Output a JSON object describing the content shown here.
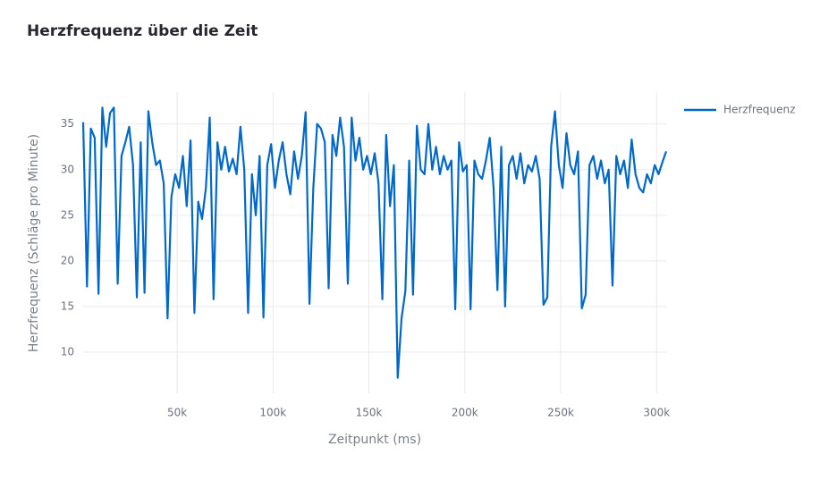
{
  "chart_data": {
    "type": "line",
    "title": "Herzfrequenz über die Zeit",
    "x_label": "Zeitpunkt (ms)",
    "y_label": "Herzfrequenz (Schläge pro Minute)",
    "xlim": [
      1000,
      305000
    ],
    "ylim": [
      5.5,
      38.5
    ],
    "xticks": [
      {
        "value": 50000,
        "label": "50k"
      },
      {
        "value": 100000,
        "label": "100k"
      },
      {
        "value": 150000,
        "label": "150k"
      },
      {
        "value": 200000,
        "label": "200k"
      },
      {
        "value": 250000,
        "label": "250k"
      },
      {
        "value": 300000,
        "label": "300k"
      }
    ],
    "yticks": [
      10,
      15,
      20,
      25,
      30,
      35
    ],
    "grid": true,
    "legend": "right",
    "x": [
      1000,
      3000,
      5000,
      7000,
      9000,
      11000,
      13000,
      15000,
      17000,
      19000,
      21000,
      23000,
      25000,
      27000,
      29000,
      31000,
      33000,
      35000,
      37000,
      39000,
      41000,
      43000,
      45000,
      47000,
      49000,
      51000,
      53000,
      55000,
      57000,
      59000,
      61000,
      63000,
      65000,
      67000,
      69000,
      71000,
      73000,
      75000,
      77000,
      79000,
      81000,
      83000,
      85000,
      87000,
      89000,
      91000,
      93000,
      95000,
      97000,
      99000,
      101000,
      103000,
      105000,
      107000,
      109000,
      111000,
      113000,
      115000,
      117000,
      119000,
      121000,
      123000,
      125000,
      127000,
      129000,
      131000,
      133000,
      135000,
      137000,
      139000,
      141000,
      143000,
      145000,
      147000,
      149000,
      151000,
      153000,
      155000,
      157000,
      159000,
      161000,
      163000,
      165000,
      167000,
      169000,
      171000,
      173000,
      175000,
      177000,
      179000,
      181000,
      183000,
      185000,
      187000,
      189000,
      191000,
      193000,
      195000,
      197000,
      199000,
      201000,
      203000,
      205000,
      207000,
      209000,
      211000,
      213000,
      215000,
      217000,
      219000,
      221000,
      223000,
      225000,
      227000,
      229000,
      231000,
      233000,
      235000,
      237000,
      239000,
      241000,
      243000,
      245000,
      247000,
      249000,
      251000,
      253000,
      255000,
      257000,
      259000,
      261000,
      263000,
      265000,
      267000,
      269000,
      271000,
      273000,
      275000,
      277000,
      279000,
      281000,
      283000,
      285000,
      287000,
      289000,
      291000,
      293000,
      295000,
      297000,
      299000,
      301000,
      303000,
      305000
    ],
    "series": [
      {
        "name": "Herzfrequenz",
        "color": "#0068c9",
        "values": [
          35.2,
          17.2,
          34.5,
          33.5,
          16.4,
          36.8,
          32.5,
          36.2,
          36.8,
          17.5,
          31.5,
          33,
          34.7,
          30.5,
          16,
          33,
          16.5,
          36.4,
          33,
          30.5,
          31,
          28.5,
          13.7,
          27,
          29.5,
          28,
          31.5,
          26,
          33.2,
          14.3,
          26.5,
          24.6,
          28,
          35.7,
          15.8,
          33,
          30,
          32.5,
          29.8,
          31.2,
          29.5,
          34.7,
          30,
          14.3,
          29.5,
          25,
          31.5,
          13.8,
          30.5,
          32.8,
          28,
          31,
          33,
          29.5,
          27.3,
          32,
          29,
          31.5,
          36.3,
          15.3,
          28,
          35,
          34.5,
          33,
          17,
          33.8,
          31.5,
          35.7,
          32.5,
          17.5,
          35.7,
          31,
          33.5,
          30,
          31.5,
          29.5,
          31.8,
          28.5,
          15.8,
          33.8,
          26,
          30.5,
          7.2,
          13.7,
          16.7,
          31,
          16.3,
          34.8,
          30,
          29.5,
          35,
          30,
          32.5,
          29.5,
          31.5,
          30,
          31,
          14.7,
          33,
          29.8,
          30.5,
          14.7,
          31,
          29.5,
          29,
          31,
          33.5,
          28,
          16.8,
          32.5,
          15,
          30.5,
          31.5,
          29,
          31.8,
          28.5,
          30.5,
          29.8,
          31.5,
          29,
          15.2,
          16,
          32.5,
          36.4,
          30.5,
          28,
          34,
          30.5,
          29.5,
          32,
          14.8,
          16.3,
          30.5,
          31.5,
          29,
          31,
          28.5,
          30,
          17.3,
          31.5,
          29.5,
          31,
          28,
          33.3,
          29.5,
          28,
          27.5,
          29.5,
          28.5,
          30.5,
          29.5,
          30.8,
          32
        ]
      }
    ]
  }
}
